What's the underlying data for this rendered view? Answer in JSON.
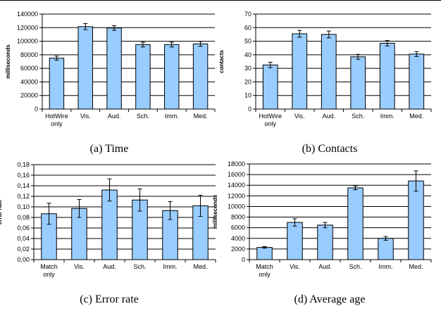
{
  "colors": {
    "bar": "#99ccff",
    "bar_stroke": "#000000",
    "grid": "#000000"
  },
  "chart_data": [
    {
      "type": "bar",
      "caption": "(a) Time",
      "ylabel": "milliseconds",
      "ylim": [
        0,
        140000
      ],
      "yticks": [
        0,
        20000,
        40000,
        60000,
        80000,
        100000,
        120000,
        140000
      ],
      "ytick_labels": [
        "0",
        "20000",
        "40000",
        "60000",
        "80000",
        "100000",
        "120000",
        "140000"
      ],
      "categories": [
        "HotWire only",
        "Vis.",
        "Aud.",
        "Sch.",
        "Imm.",
        "Med."
      ],
      "category_lines": [
        [
          "HotWire",
          "only"
        ],
        [
          "Vis."
        ],
        [
          "Aud."
        ],
        [
          "Sch."
        ],
        [
          "Imm."
        ],
        [
          "Med."
        ]
      ],
      "values": [
        75000,
        121500,
        119500,
        95000,
        95000,
        96000
      ],
      "errors": [
        3000,
        4500,
        3500,
        3500,
        3500,
        3500
      ],
      "grid": true
    },
    {
      "type": "bar",
      "caption": "(b) Contacts",
      "ylabel": "contacts",
      "ylim": [
        0,
        70
      ],
      "yticks": [
        0,
        10,
        20,
        30,
        40,
        50,
        60,
        70
      ],
      "ytick_labels": [
        "0",
        "10",
        "20",
        "30",
        "40",
        "50",
        "60",
        "70"
      ],
      "categories": [
        "HotWire only",
        "Vis.",
        "Aud.",
        "Sch.",
        "Imm.",
        "Med."
      ],
      "category_lines": [
        [
          "HotWire",
          "only"
        ],
        [
          "Vis."
        ],
        [
          "Aud."
        ],
        [
          "Sch."
        ],
        [
          "Imm."
        ],
        [
          "Med."
        ]
      ],
      "values": [
        32.5,
        55.5,
        55,
        38.5,
        48.5,
        40.5
      ],
      "errors": [
        2,
        2.5,
        2.5,
        1.8,
        2,
        1.8
      ],
      "grid": true
    },
    {
      "type": "bar",
      "caption": "(c) Error rate",
      "ylabel": "error rate",
      "ylim": [
        0,
        0.18
      ],
      "yticks": [
        0,
        0.02,
        0.04,
        0.06,
        0.08,
        0.1,
        0.12,
        0.14,
        0.16,
        0.18
      ],
      "ytick_labels": [
        "0,00",
        "0,02",
        "0,04",
        "0,06",
        "0,08",
        "0,10",
        "0,12",
        "0,14",
        "0,16",
        "0,18"
      ],
      "categories": [
        "Match only",
        "Vis.",
        "Aud.",
        "Sch.",
        "Imm.",
        "Med."
      ],
      "category_lines": [
        [
          "Match",
          "only"
        ],
        [
          "Vis."
        ],
        [
          "Aud."
        ],
        [
          "Sch."
        ],
        [
          "Imm."
        ],
        [
          "Med."
        ]
      ],
      "values": [
        0.087,
        0.097,
        0.132,
        0.113,
        0.093,
        0.102
      ],
      "errors": [
        0.02,
        0.017,
        0.021,
        0.021,
        0.017,
        0.02
      ],
      "grid": true
    },
    {
      "type": "bar",
      "caption": "(d) Average age",
      "ylabel": "milliseconds",
      "ylim": [
        0,
        18000
      ],
      "yticks": [
        0,
        2000,
        4000,
        6000,
        8000,
        10000,
        12000,
        14000,
        16000,
        18000
      ],
      "ytick_labels": [
        "0",
        "2000",
        "4000",
        "6000",
        "8000",
        "10000",
        "12000",
        "14000",
        "16000",
        "18000"
      ],
      "categories": [
        "Match only",
        "Vis.",
        "Aud.",
        "Sch.",
        "Imm.",
        "Med."
      ],
      "category_lines": [
        [
          "Match",
          "only"
        ],
        [
          "Vis."
        ],
        [
          "Aud."
        ],
        [
          "Sch."
        ],
        [
          "Imm."
        ],
        [
          "Med."
        ]
      ],
      "values": [
        2300,
        7000,
        6500,
        13500,
        4000,
        14800
      ],
      "errors": [
        150,
        700,
        500,
        350,
        350,
        1900
      ],
      "grid": true
    }
  ]
}
